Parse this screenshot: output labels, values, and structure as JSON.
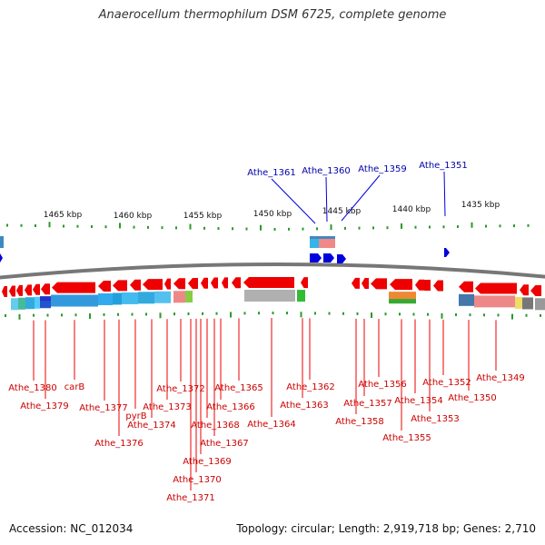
{
  "title": "Anaerocellum thermophilum DSM 6725, complete genome",
  "footer": {
    "accession": "Accession: NC_012034",
    "summary": "Topology: circular; Length: 2,919,718 bp; Genes: 2,710"
  },
  "colors": {
    "forward_gene": "#0000dd",
    "reverse_gene": "#ee0000",
    "forward_label": "#0000aa",
    "reverse_label": "#cc0000",
    "tick": "#2a9a2a",
    "backbone": "#777777"
  },
  "scale": {
    "unit": "kbp",
    "ticks": [
      {
        "label": "1465 kbp"
      },
      {
        "label": "1460 kbp"
      },
      {
        "label": "1455 kbp"
      },
      {
        "label": "1450 kbp"
      },
      {
        "label": "1445 kbp"
      },
      {
        "label": "1440 kbp"
      },
      {
        "label": "1435 kbp"
      }
    ]
  },
  "forward_labels": [
    "Athe_1361",
    "Athe_1360",
    "Athe_1359",
    "Athe_1351"
  ],
  "reverse_labels": [
    "Athe_1380",
    "Athe_1379",
    "carB",
    "Athe_1377",
    "Athe_1376",
    "pyrB",
    "Athe_1374",
    "Athe_1373",
    "Athe_1372",
    "Athe_1371",
    "Athe_1370",
    "Athe_1369",
    "Athe_1368",
    "Athe_1367",
    "Athe_1366",
    "Athe_1365",
    "Athe_1364",
    "Athe_1363",
    "Athe_1362",
    "Athe_1358",
    "Athe_1357",
    "Athe_1356",
    "Athe_1355",
    "Athe_1354",
    "Athe_1353",
    "Athe_1352",
    "Athe_1350",
    "Athe_1349"
  ]
}
